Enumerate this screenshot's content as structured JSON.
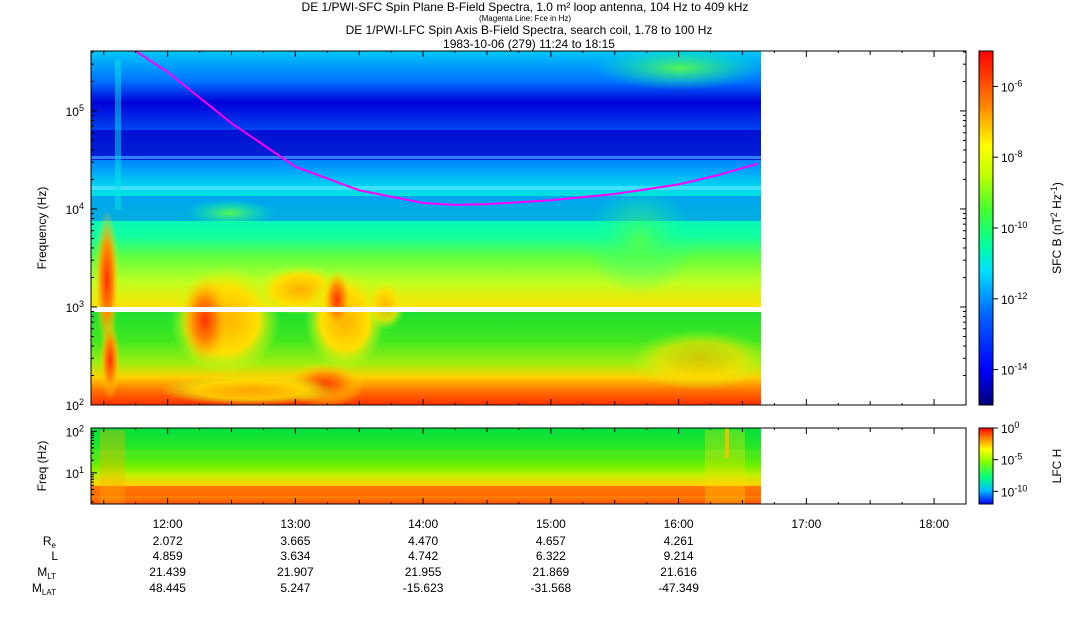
{
  "chart_data": [
    {
      "type": "heatmap",
      "title": "DE 1/PWI-SFC  Spin Plane B-Field Spectra, 1.0 m² loop antenna, 104 Hz to 409 kHz",
      "subtitle": "(Magenta Line: Fce in Hz)",
      "ylabel": "Frequency (Hz)",
      "yscale": "log",
      "ylim": [
        100,
        409000
      ],
      "yticks": [
        {
          "v": 100,
          "b": "10",
          "e": "2"
        },
        {
          "v": 1000,
          "b": "10",
          "e": "3"
        },
        {
          "v": 10000,
          "b": "10",
          "e": "4"
        },
        {
          "v": 100000,
          "b": "10",
          "e": "5"
        }
      ],
      "xlim_hours": [
        11.4,
        18.25
      ],
      "data_end_hours": 16.65,
      "colorbar": {
        "label_main": "SFC B (nT",
        "label_sup1": "2",
        "label_mid": " Hz",
        "label_sup2": "-1",
        "label_end": ")",
        "scale": "log",
        "range": [
          1e-15,
          1e-05
        ],
        "ticks": [
          {
            "v": -6,
            "b": "10",
            "e": "-6"
          },
          {
            "v": -8,
            "b": "10",
            "e": "-8"
          },
          {
            "v": -10,
            "b": "10",
            "e": "-10"
          },
          {
            "v": -12,
            "b": "10",
            "e": "-12"
          },
          {
            "v": -14,
            "b": "10",
            "e": "-14"
          }
        ]
      },
      "fce_line": {
        "color": "#ff00ff",
        "x_hours": [
          11.75,
          12.0,
          12.5,
          13.0,
          13.5,
          14.0,
          14.25,
          14.5,
          15.0,
          15.5,
          16.0,
          16.3,
          16.62
        ],
        "y_hz": [
          409000,
          250000,
          75000,
          27000,
          15500,
          11500,
          11000,
          11200,
          12300,
          14200,
          17800,
          22000,
          29000
        ]
      }
    },
    {
      "type": "heatmap",
      "title": "DE 1/PWI-LFC  Spin Axis B-Field Spectra, search coil, 1.78 to 100 Hz",
      "ylabel": "Freq (Hz)",
      "yscale": "log",
      "ylim": [
        1.78,
        120
      ],
      "yticks": [
        {
          "v": 10,
          "b": "10",
          "e": "1"
        },
        {
          "v": 100,
          "b": "10",
          "e": "2"
        }
      ],
      "colorbar": {
        "label": "LFC H",
        "scale": "log",
        "range": [
          1e-12,
          1
        ],
        "ticks": [
          {
            "v": 0,
            "b": "10",
            "e": "0"
          },
          {
            "v": -5,
            "b": "10",
            "e": "-5"
          },
          {
            "v": -10,
            "b": "10",
            "e": "-10"
          }
        ]
      }
    }
  ],
  "time_axis": {
    "ticks": [
      {
        "h": 12,
        "label": "12:00"
      },
      {
        "h": 13,
        "label": "13:00"
      },
      {
        "h": 14,
        "label": "14:00"
      },
      {
        "h": 15,
        "label": "15:00"
      },
      {
        "h": 16,
        "label": "16:00"
      },
      {
        "h": 17,
        "label": "17:00"
      },
      {
        "h": 18,
        "label": "18:00"
      }
    ]
  },
  "ephemeris": [
    {
      "name": "R",
      "sub": "e",
      "values": [
        "2.072",
        "3.665",
        "4.470",
        "4.657",
        "4.261"
      ]
    },
    {
      "name": "L",
      "sub": "",
      "values": [
        "4.859",
        "3.634",
        "4.742",
        "6.322",
        "9.214"
      ]
    },
    {
      "name": "M",
      "sub": "LT",
      "values": [
        "21.439",
        "21.907",
        "21.955",
        "21.869",
        "21.616"
      ]
    },
    {
      "name": "M",
      "sub": "LAT",
      "values": [
        "48.445",
        "5.247",
        "-15.623",
        "-31.568",
        "-47.349"
      ]
    }
  ],
  "date_range": "1983-10-06 (279) 11:24 to 18:15",
  "colors": {
    "magenta": "#ff00ff",
    "gap": "#ffffff"
  }
}
